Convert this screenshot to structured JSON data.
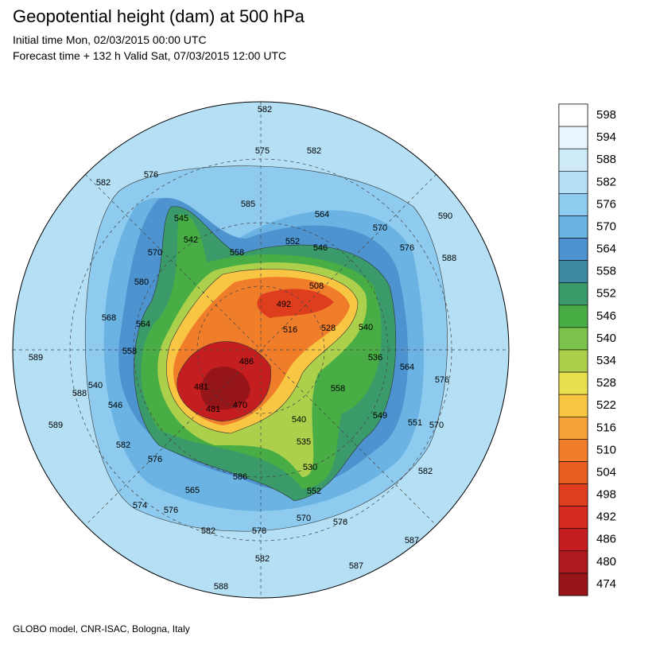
{
  "header": {
    "title": "Geopotential height (dam) at 500 hPa",
    "initial_time": "Initial time Mon, 02/03/2015 00:00 UTC",
    "forecast_time": "Forecast time + 132 h Valid Sat, 07/03/2015 12:00 UTC"
  },
  "colorbar": {
    "levels": [
      598,
      594,
      588,
      582,
      576,
      570,
      564,
      558,
      552,
      546,
      540,
      534,
      528,
      522,
      516,
      510,
      504,
      498,
      492,
      486,
      480,
      474
    ],
    "colors": [
      "#ffffff",
      "#e8f5fc",
      "#cfeaf8",
      "#b4dff5",
      "#8ecbee",
      "#6ab3e3",
      "#4d93cf",
      "#3d8aa0",
      "#3a9a6a",
      "#47ad44",
      "#7cc24a",
      "#acd04c",
      "#e7df4e",
      "#f8c642",
      "#f5a338",
      "#ef7d2a",
      "#e85c22",
      "#de3e1e",
      "#d42a1f",
      "#c41e20",
      "#ac1a1d",
      "#961518"
    ]
  },
  "contour_labels": [
    582,
    575,
    582,
    576,
    582,
    585,
    545,
    542,
    570,
    564,
    552,
    558,
    546,
    570,
    576,
    590,
    588,
    580,
    508,
    492,
    568,
    564,
    516,
    528,
    540,
    536,
    558,
    486,
    589,
    588,
    540,
    564,
    576,
    481,
    558,
    481,
    470,
    549,
    551,
    570,
    546,
    589,
    540,
    582,
    535,
    576,
    530,
    586,
    582,
    565,
    552,
    574,
    576,
    570,
    576,
    582,
    578,
    587,
    582,
    587,
    588
  ],
  "footer": "GLOBO model, CNR-ISAC, Bologna, Italy"
}
